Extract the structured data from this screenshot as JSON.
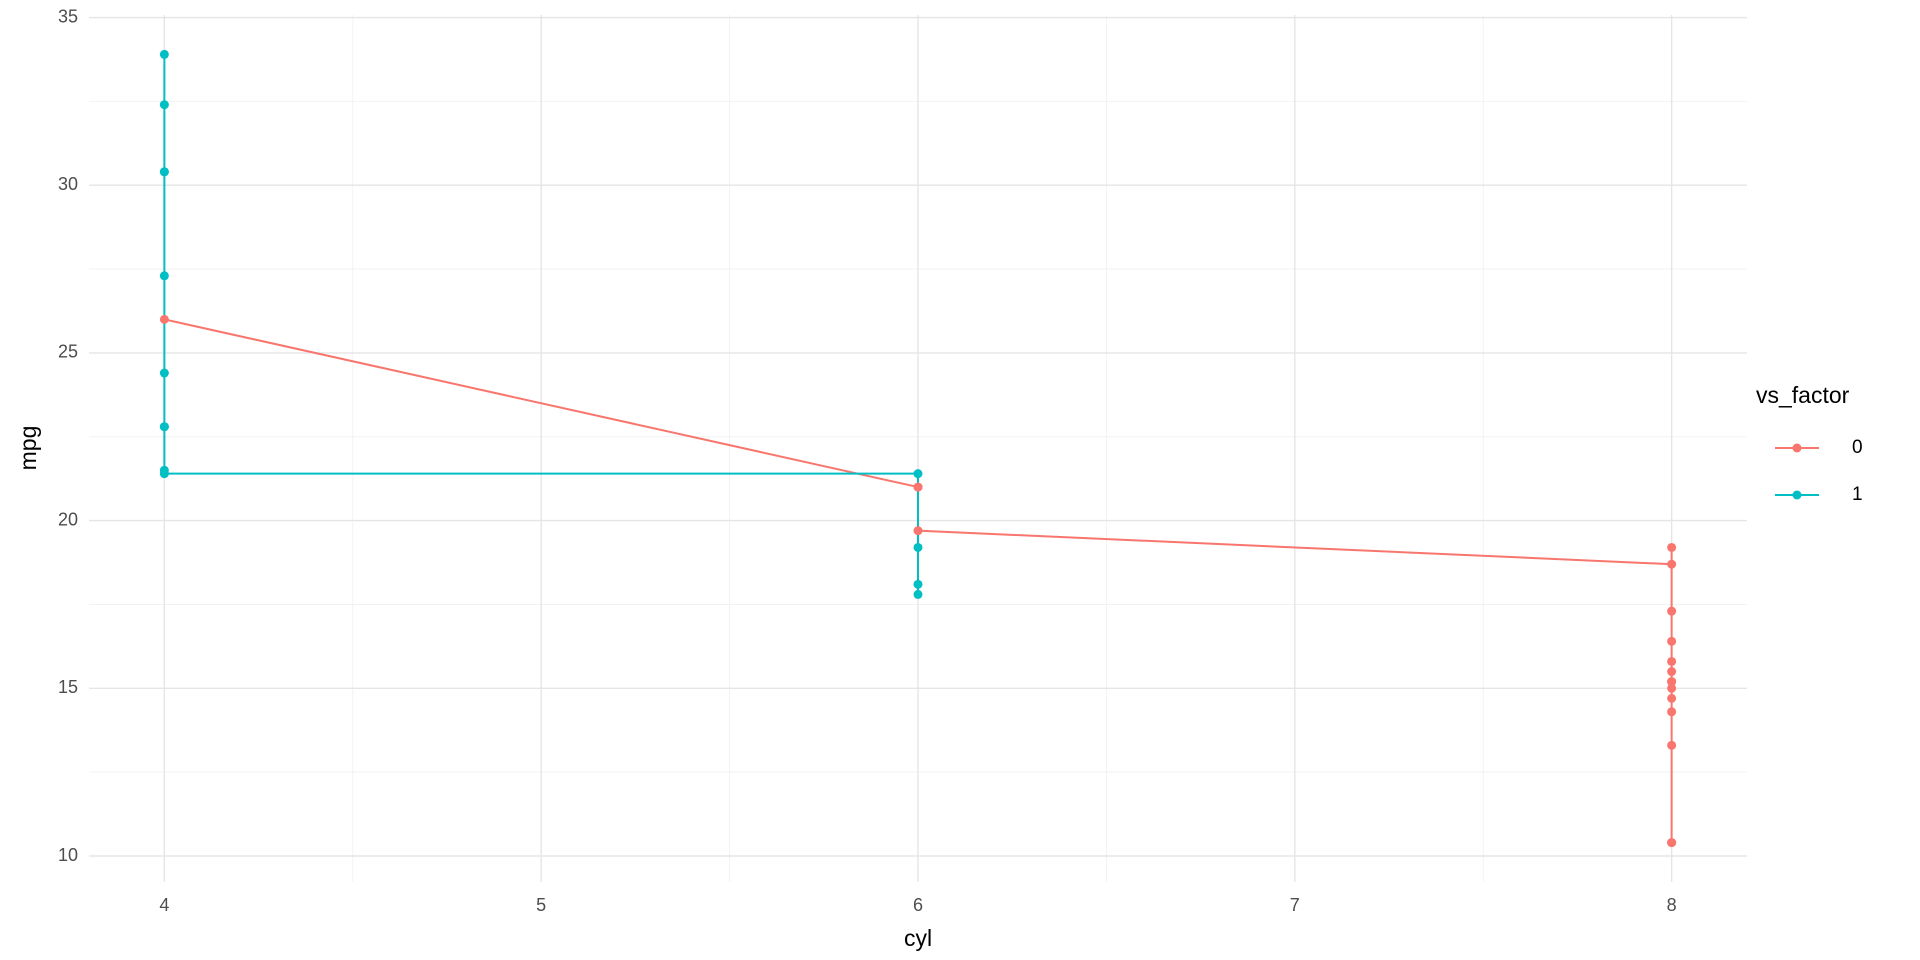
{
  "chart_data": {
    "type": "line",
    "x_label": "cyl",
    "y_label": "mpg",
    "legend_title": "vs_factor",
    "xlim": [
      3.8,
      8.2
    ],
    "xticks": [
      4,
      5,
      6,
      7,
      8
    ],
    "ylim": [
      9.225,
      35.075
    ],
    "yticks": [
      10,
      15,
      20,
      25,
      30,
      35
    ],
    "grid": true,
    "legend": "right",
    "series": [
      {
        "name": "0",
        "color": "#F8766D",
        "x": [
          4,
          6,
          6,
          6,
          8,
          8,
          8,
          8,
          8,
          8,
          8,
          8,
          8,
          8,
          8,
          8,
          8,
          8
        ],
        "values": [
          26.0,
          21.0,
          21.0,
          19.7,
          18.7,
          14.3,
          16.4,
          17.3,
          15.2,
          10.4,
          10.4,
          14.7,
          15.5,
          15.2,
          13.3,
          19.2,
          15.8,
          15.0
        ]
      },
      {
        "name": "1",
        "color": "#00BFC4",
        "x": [
          4,
          4,
          4,
          4,
          4,
          4,
          4,
          4,
          4,
          4,
          6,
          6,
          6,
          6
        ],
        "values": [
          22.8,
          24.4,
          22.8,
          32.4,
          30.4,
          33.9,
          21.5,
          27.3,
          30.4,
          21.4,
          21.4,
          18.1,
          19.2,
          17.8
        ]
      }
    ]
  }
}
